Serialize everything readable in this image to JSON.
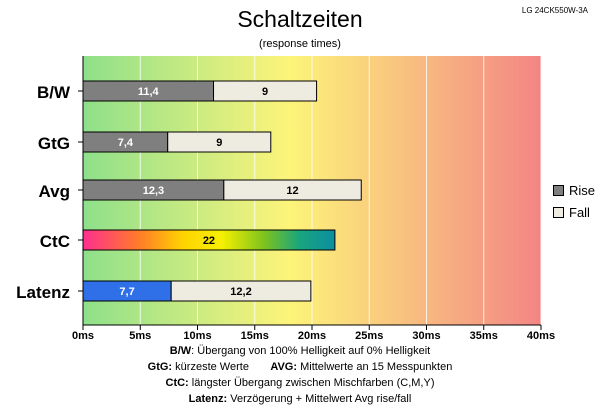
{
  "header": {
    "title": "Schaltzeiten",
    "subtitle": "(response times)",
    "model": "LG 24CK550W-3A"
  },
  "colors": {
    "rise": "#7f7f7f",
    "fall": "#eeece1",
    "latenz": "#2f6fe8",
    "bg_green": "#8ee08a",
    "bg_yellow": "#fdf47a",
    "bg_red": "#f38585"
  },
  "chart_data": {
    "type": "bar",
    "orientation": "horizontal",
    "stacked": true,
    "categories": [
      "B/W",
      "GtG",
      "Avg",
      "CtC",
      "Latenz"
    ],
    "series": [
      {
        "name": "Rise",
        "values": [
          11.4,
          7.4,
          12.3,
          22,
          7.7
        ],
        "labels": [
          "11,4",
          "7,4",
          "12,3",
          "22",
          "7,7"
        ]
      },
      {
        "name": "Fall",
        "values": [
          9,
          9,
          12,
          null,
          12.2
        ],
        "labels": [
          "9",
          "9",
          "12",
          "",
          "12,2"
        ]
      }
    ],
    "xlim": [
      0,
      40
    ],
    "xticks": [
      0,
      5,
      10,
      15,
      20,
      25,
      30,
      35,
      40
    ],
    "xtick_labels": [
      "0ms",
      "5ms",
      "10ms",
      "15ms",
      "20ms",
      "25ms",
      "30ms",
      "35ms",
      "40ms"
    ],
    "legend_position": "right",
    "grid": true
  },
  "notes": [
    {
      "bold": "B/W",
      "text": ":  Übergang von 100% Helligkeit auf 0% Helligkeit"
    },
    {
      "bold": "GtG:",
      "text": " kürzeste  Werte",
      "bold2": "AVG:",
      "text2": " Mittelwerte  an 15 Messpunkten"
    },
    {
      "bold": "CtC:",
      "text": " längster Übergang  zwischen Mischfarben (C,M,Y)"
    },
    {
      "bold": "Latenz:",
      "text": " Verzögerung  + Mittelwert  Avg rise/fall"
    }
  ]
}
